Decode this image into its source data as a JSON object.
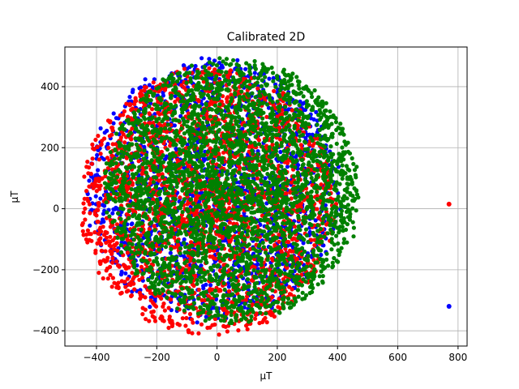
{
  "chart_data": {
    "type": "scatter",
    "title": "Calibrated 2D",
    "xlabel": "μT",
    "ylabel": "μT",
    "xlim": [
      -505,
      830
    ],
    "ylim": [
      -450,
      530
    ],
    "xticks": [
      -400,
      -200,
      0,
      200,
      400,
      600,
      800
    ],
    "yticks": [
      -400,
      -200,
      0,
      200,
      400
    ],
    "xtick_labels": [
      "−400",
      "−200",
      "0",
      "200",
      "400",
      "600",
      "800"
    ],
    "ytick_labels": [
      "−400",
      "−200",
      "0",
      "200",
      "400"
    ],
    "grid": true,
    "series": [
      {
        "color": "#0000ff",
        "cloud": {
          "cx": -10,
          "cy": 60,
          "rx": 420,
          "ry": 430,
          "n": 1600
        },
        "outliers": [
          {
            "x": 770,
            "y": -320
          }
        ]
      },
      {
        "color": "#ff0000",
        "cloud": {
          "cx": -30,
          "cy": 20,
          "rx": 420,
          "ry": 440,
          "n": 2200
        },
        "outliers": [
          {
            "x": 770,
            "y": 15
          }
        ]
      },
      {
        "color": "#008000",
        "cloud": {
          "cx": 50,
          "cy": 60,
          "rx": 420,
          "ry": 430,
          "n": 3200
        },
        "outliers": []
      }
    ]
  }
}
